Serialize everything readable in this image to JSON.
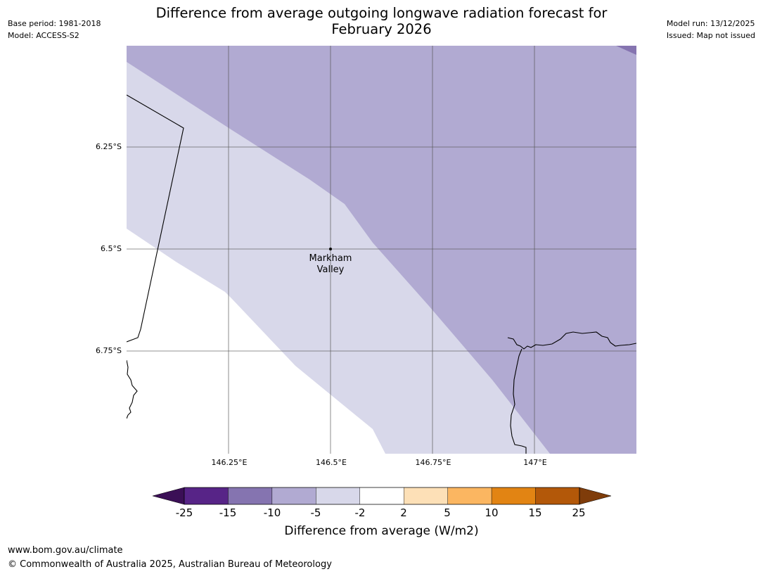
{
  "header": {
    "title_line1": "Difference from average outgoing longwave radiation forecast for",
    "title_line2": "February 2026",
    "base_period": "Base period: 1981-2018",
    "model": "Model: ACCESS-S2",
    "model_run": "Model run: 13/12/2025",
    "issued": "Issued: Map not issued"
  },
  "map": {
    "lat_labels": [
      "6.25°S",
      "6.5°S",
      "6.75°S"
    ],
    "lon_labels": [
      "146.25°E",
      "146.5°E",
      "146.75°E",
      "147°E"
    ],
    "place": {
      "name_line1": "Markham",
      "name_line2": "Valley"
    },
    "colors": {
      "band_-15_-10": "#8574b0",
      "band_-10_-5": "#b1aad2",
      "band_-5_-2": "#d8d8ea",
      "band_-2_2": "#ffffff",
      "gridline": "#555555",
      "coastline": "#000000"
    }
  },
  "colorbar": {
    "title": "Difference from average (W/m2)",
    "ticks": [
      "-25",
      "-15",
      "-10",
      "-5",
      "-2",
      "2",
      "5",
      "10",
      "15",
      "25"
    ],
    "under_color": "#3b0f56",
    "over_color": "#7f3c0a",
    "colors": [
      "#572487",
      "#8574b0",
      "#b1aad2",
      "#d8d8ea",
      "#ffffff",
      "#fde0b7",
      "#fbb661",
      "#e28413",
      "#b35809"
    ]
  },
  "footer": {
    "url": "www.bom.gov.au/climate",
    "copyright": "© Commonwealth of Australia 2025, Australian Bureau of Meteorology"
  }
}
